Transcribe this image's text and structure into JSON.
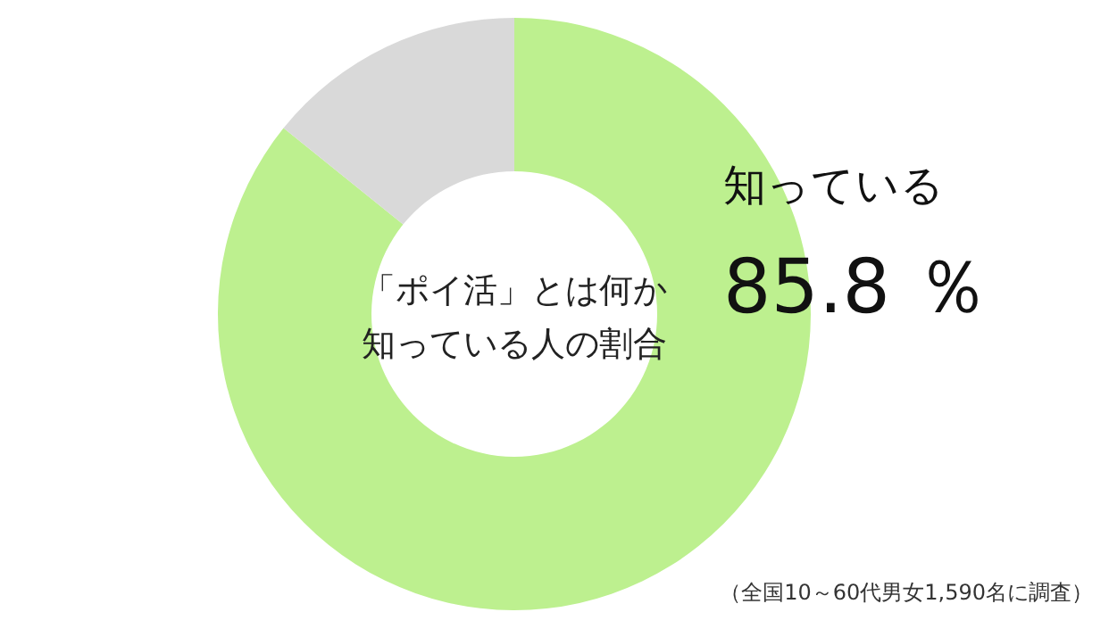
{
  "chart_data": {
    "type": "donut",
    "title": "「ポイ活」とは何か知っている人の割合",
    "categories": [
      "知っている",
      null
    ],
    "values": [
      85.8,
      14.2
    ],
    "colors": [
      "#bdf08f",
      "#d9d9d9"
    ],
    "value_labels": [
      "85.8 ％",
      null
    ],
    "annotations": [
      "（全国10～60代男女1,590名に調査）"
    ]
  }
}
